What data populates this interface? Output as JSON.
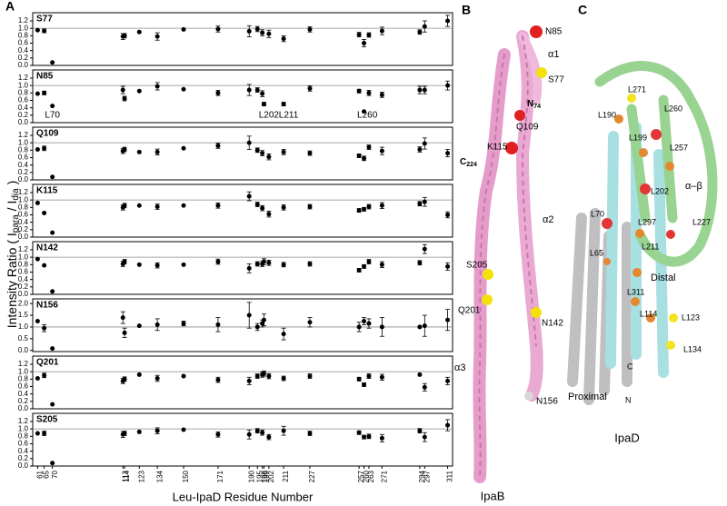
{
  "figure": {
    "panel_label": "A",
    "ylabel_parts": [
      "Intensity Ratio ( I",
      "para",
      " / I",
      "dia",
      " )"
    ]
  },
  "chart_data": [
    {
      "type": "scatter",
      "title": "S77",
      "color": "#000000",
      "reference_line": 1,
      "xlim": [
        58,
        314
      ],
      "ylim": [
        0,
        1.42
      ],
      "yticks": [
        {
          "value": 0,
          "label": "0.0"
        },
        0.2,
        0.4,
        0.6,
        0.8,
        {
          "value": 1,
          "label": "1.0"
        },
        1.2
      ],
      "x": [
        61,
        65,
        70,
        113,
        114,
        123,
        134,
        150,
        171,
        190,
        195,
        198,
        199,
        202,
        211,
        227,
        257,
        260,
        263,
        271,
        294,
        297,
        311
      ],
      "values": [
        0.95,
        0.93,
        0.08,
        0.78,
        0.8,
        0.9,
        0.78,
        0.97,
        0.98,
        0.92,
        0.98,
        0.88,
        null,
        0.85,
        0.72,
        0.97,
        0.83,
        0.6,
        0.82,
        0.93,
        0.9,
        1.05,
        1.2
      ],
      "errors": [
        null,
        0.05,
        null,
        0.08,
        0.06,
        null,
        0.1,
        null,
        0.08,
        0.15,
        0.07,
        0.08,
        null,
        0.1,
        0.08,
        0.07,
        0.06,
        0.1,
        0.06,
        0.1,
        0.06,
        0.15,
        0.15
      ]
    },
    {
      "type": "scatter",
      "title": "N85",
      "color": "#000000",
      "reference_line": 1,
      "xlim": [
        58,
        314
      ],
      "ylim": [
        0,
        1.42
      ],
      "yticks": [
        {
          "value": 0,
          "label": "0.0"
        },
        0.2,
        0.4,
        0.6,
        0.8,
        {
          "value": 1,
          "label": "1.0"
        },
        1.2
      ],
      "x": [
        61,
        65,
        70,
        113,
        114,
        123,
        134,
        150,
        171,
        190,
        195,
        198,
        199,
        202,
        211,
        227,
        257,
        260,
        263,
        271,
        294,
        297,
        311
      ],
      "values": [
        0.78,
        0.8,
        0.45,
        0.88,
        0.65,
        0.85,
        0.98,
        0.9,
        0.8,
        0.88,
        0.88,
        0.78,
        0.5,
        null,
        0.5,
        0.92,
        0.85,
        0.3,
        0.8,
        0.75,
        0.88,
        0.88,
        1.0
      ],
      "errors": [
        null,
        0.05,
        null,
        0.1,
        0.06,
        null,
        0.1,
        null,
        0.07,
        0.15,
        0.06,
        0.08,
        0.05,
        null,
        0.05,
        0.07,
        0.05,
        null,
        0.07,
        0.07,
        0.1,
        0.1,
        0.12
      ],
      "annotations": [
        {
          "text": "L70",
          "x": 70
        },
        {
          "text": "L202",
          "x": 202
        },
        {
          "text": "L211",
          "x": 214
        },
        {
          "text": "L260",
          "x": 262
        }
      ]
    },
    {
      "type": "scatter",
      "title": "Q109",
      "color": "#000000",
      "reference_line": 1,
      "xlim": [
        58,
        314
      ],
      "ylim": [
        0,
        1.42
      ],
      "yticks": [
        {
          "value": 0,
          "label": "0.0"
        },
        0.2,
        0.4,
        0.6,
        0.8,
        {
          "value": 1,
          "label": "1.0"
        },
        1.2
      ],
      "x": [
        61,
        65,
        70,
        113,
        114,
        123,
        134,
        150,
        171,
        190,
        195,
        198,
        199,
        202,
        211,
        227,
        257,
        260,
        263,
        271,
        294,
        297,
        311
      ],
      "values": [
        0.82,
        0.85,
        0.08,
        0.78,
        0.82,
        0.75,
        0.75,
        0.85,
        0.92,
        1.0,
        0.8,
        0.72,
        null,
        0.62,
        0.75,
        0.72,
        0.65,
        0.58,
        0.88,
        0.78,
        0.82,
        0.98,
        0.72
      ],
      "errors": [
        null,
        0.06,
        null,
        0.07,
        0.06,
        null,
        0.08,
        null,
        0.07,
        0.18,
        0.06,
        0.07,
        null,
        0.08,
        0.07,
        0.06,
        0.05,
        0.06,
        0.06,
        0.1,
        0.07,
        0.15,
        0.1
      ]
    },
    {
      "type": "scatter",
      "title": "K115",
      "color": "#000000",
      "reference_line": 1,
      "xlim": [
        58,
        314
      ],
      "ylim": [
        0,
        1.42
      ],
      "yticks": [
        {
          "value": 0,
          "label": "0.0"
        },
        0.2,
        0.4,
        0.6,
        0.8,
        {
          "value": 1,
          "label": "1.0"
        },
        1.2
      ],
      "x": [
        61,
        65,
        70,
        113,
        114,
        123,
        134,
        150,
        171,
        190,
        195,
        198,
        199,
        202,
        211,
        227,
        257,
        260,
        263,
        271,
        294,
        297,
        311
      ],
      "values": [
        0.92,
        0.65,
        0.12,
        0.8,
        0.85,
        0.85,
        0.82,
        0.85,
        0.85,
        1.1,
        0.88,
        0.78,
        null,
        0.62,
        0.8,
        0.82,
        0.72,
        0.75,
        0.82,
        0.85,
        0.9,
        0.95,
        0.6
      ],
      "errors": [
        null,
        null,
        null,
        0.07,
        0.06,
        null,
        0.07,
        null,
        0.07,
        0.12,
        0.06,
        0.07,
        null,
        0.08,
        0.07,
        0.06,
        0.05,
        0.05,
        0.06,
        0.08,
        0.06,
        0.12,
        0.08
      ]
    },
    {
      "type": "scatter",
      "title": "N142",
      "color": "#000000",
      "reference_line": 1,
      "xlim": [
        58,
        314
      ],
      "ylim": [
        0,
        1.42
      ],
      "yticks": [
        {
          "value": 0,
          "label": "0.0"
        },
        0.2,
        0.4,
        0.6,
        0.8,
        {
          "value": 1,
          "label": "1.0"
        },
        1.2
      ],
      "x": [
        61,
        65,
        70,
        113,
        114,
        123,
        134,
        150,
        171,
        190,
        195,
        198,
        199,
        202,
        211,
        227,
        257,
        260,
        263,
        271,
        294,
        297,
        311
      ],
      "values": [
        0.95,
        0.78,
        0.08,
        0.82,
        0.88,
        0.8,
        0.78,
        0.8,
        0.88,
        0.7,
        0.82,
        0.82,
        0.88,
        0.85,
        0.8,
        0.82,
        0.65,
        0.75,
        0.88,
        0.8,
        0.85,
        1.22,
        0.75
      ],
      "errors": [
        null,
        null,
        null,
        0.07,
        0.06,
        null,
        0.07,
        null,
        0.07,
        0.12,
        0.06,
        0.07,
        0.08,
        0.07,
        0.06,
        0.06,
        0.05,
        0.05,
        0.06,
        0.08,
        0.06,
        0.12,
        0.1
      ]
    },
    {
      "type": "scatter",
      "title": "N156",
      "color": "#000000",
      "reference_line": 1,
      "xlim": [
        58,
        314
      ],
      "ylim": [
        -0.05,
        2.2
      ],
      "yticks": [
        {
          "value": 0,
          "label": "0.0"
        },
        0.5,
        {
          "value": 1,
          "label": "1.0"
        },
        1.5,
        {
          "value": 2,
          "label": "2.0"
        }
      ],
      "x": [
        61,
        65,
        70,
        113,
        114,
        123,
        134,
        150,
        171,
        190,
        195,
        198,
        199,
        202,
        211,
        227,
        257,
        260,
        263,
        271,
        294,
        297,
        311
      ],
      "values": [
        1.25,
        0.95,
        0.08,
        1.4,
        0.75,
        1.05,
        1.1,
        1.15,
        1.1,
        1.5,
        1.0,
        1.15,
        1.3,
        null,
        0.7,
        1.2,
        1.0,
        1.25,
        1.15,
        1.0,
        1.0,
        1.05,
        1.3
      ],
      "errors": [
        null,
        0.15,
        null,
        0.25,
        0.2,
        null,
        0.25,
        0.1,
        0.3,
        0.55,
        0.15,
        0.15,
        0.25,
        null,
        0.25,
        0.2,
        0.2,
        0.15,
        0.2,
        0.4,
        null,
        0.45,
        0.45
      ]
    },
    {
      "type": "scatter",
      "title": "Q201",
      "color": "#000000",
      "reference_line": 1,
      "xlim": [
        58,
        314
      ],
      "ylim": [
        0,
        1.42
      ],
      "yticks": [
        {
          "value": 0,
          "label": "0.0"
        },
        0.2,
        0.4,
        0.6,
        0.8,
        {
          "value": 1,
          "label": "1.0"
        },
        1.2
      ],
      "x": [
        61,
        65,
        70,
        113,
        114,
        123,
        134,
        150,
        171,
        190,
        195,
        198,
        199,
        202,
        211,
        227,
        257,
        260,
        263,
        271,
        294,
        297,
        311
      ],
      "values": [
        0.82,
        0.9,
        0.12,
        0.75,
        0.8,
        0.92,
        0.82,
        0.88,
        0.78,
        0.75,
        0.88,
        0.92,
        0.95,
        0.88,
        0.82,
        0.88,
        0.8,
        0.65,
        0.88,
        0.85,
        0.92,
        0.58,
        0.75
      ],
      "errors": [
        null,
        0.06,
        null,
        0.07,
        0.06,
        null,
        0.08,
        null,
        0.07,
        0.1,
        0.06,
        0.07,
        0.07,
        0.07,
        0.06,
        0.06,
        0.05,
        0.05,
        0.06,
        0.08,
        null,
        0.1,
        0.1
      ]
    },
    {
      "type": "scatter",
      "title": "S205",
      "color": "#000000",
      "reference_line": 1,
      "xlim": [
        58,
        314
      ],
      "ylim": [
        0,
        1.42
      ],
      "yticks": [
        {
          "value": 0,
          "label": "0.0"
        },
        0.2,
        0.4,
        0.6,
        0.8,
        {
          "value": 1,
          "label": "1.0"
        },
        1.2
      ],
      "x": [
        61,
        65,
        70,
        113,
        114,
        123,
        134,
        150,
        171,
        190,
        195,
        198,
        199,
        202,
        211,
        227,
        257,
        260,
        263,
        271,
        294,
        297,
        311
      ],
      "values": [
        0.88,
        0.88,
        0.08,
        0.85,
        0.88,
        0.92,
        0.95,
        0.98,
        0.85,
        0.85,
        0.95,
        0.9,
        null,
        0.78,
        0.95,
        0.88,
        0.9,
        0.78,
        0.8,
        0.75,
        0.95,
        0.78,
        1.1
      ],
      "errors": [
        null,
        0.06,
        null,
        0.08,
        0.06,
        null,
        0.08,
        null,
        0.07,
        0.12,
        0.06,
        0.07,
        null,
        0.07,
        0.12,
        0.06,
        0.05,
        0.05,
        0.06,
        0.1,
        0.06,
        0.12,
        0.15
      ],
      "xticks": [
        61,
        65,
        70,
        113,
        114,
        123,
        134,
        150,
        171,
        190,
        195,
        198,
        199,
        202,
        211,
        227,
        257,
        260,
        263,
        271,
        294,
        297,
        311
      ],
      "xlabel": "Leu-IpaD Residue Number"
    }
  ],
  "panel_b": {
    "label": "B",
    "title": "IpaB",
    "labels": [
      "N85",
      "α1",
      "S77",
      {
        "text": "N",
        "sub": "74"
      },
      "Q109",
      "K115",
      {
        "text": "C",
        "sub": "224"
      },
      "α2",
      "S205",
      "Q201",
      "N142",
      "α3",
      "N156"
    ]
  },
  "panel_c": {
    "label": "C",
    "title": "IpaD",
    "labels": [
      "L271",
      "L190",
      "L260",
      "L257",
      "L199",
      "α–β",
      "L202",
      "L70",
      "L297",
      "L227",
      "L65",
      "L211",
      "Distal",
      "L311",
      "L114",
      "L123",
      "L134",
      "C",
      "N",
      "Proximal"
    ]
  }
}
